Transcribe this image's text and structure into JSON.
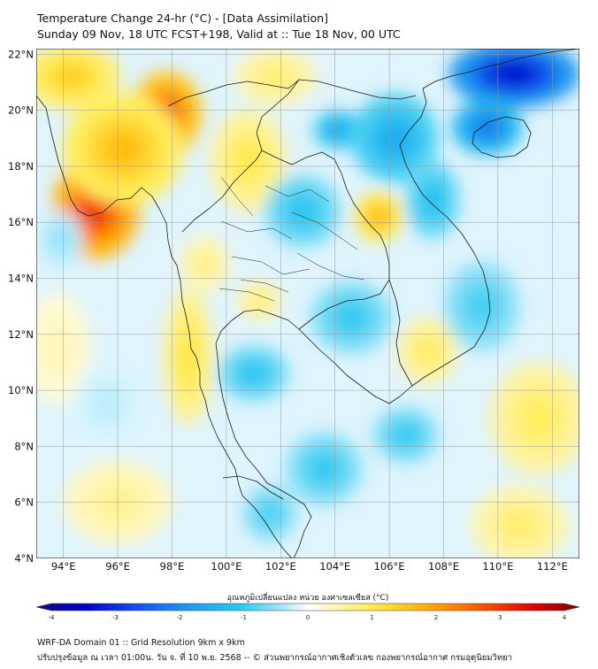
{
  "title": {
    "line1": "Temperature Change 24-hr (°C) - [Data Assimilation]",
    "line2": "Sunday 09 Nov, 18 UTC FCST+198, Valid at :: Tue 18 Nov, 00 UTC"
  },
  "map": {
    "lon_range": [
      93,
      113
    ],
    "lat_range": [
      4,
      22.2
    ],
    "lon_ticks": [
      {
        "value": 94,
        "label": "94°E"
      },
      {
        "value": 96,
        "label": "96°E"
      },
      {
        "value": 98,
        "label": "98°E"
      },
      {
        "value": 100,
        "label": "100°E"
      },
      {
        "value": 102,
        "label": "102°E"
      },
      {
        "value": 104,
        "label": "104°E"
      },
      {
        "value": 106,
        "label": "106°E"
      },
      {
        "value": 108,
        "label": "108°E"
      },
      {
        "value": 110,
        "label": "110°E"
      },
      {
        "value": 112,
        "label": "112°E"
      }
    ],
    "lat_ticks": [
      {
        "value": 4,
        "label": "4°N"
      },
      {
        "value": 6,
        "label": "6°N"
      },
      {
        "value": 8,
        "label": "8°N"
      },
      {
        "value": 10,
        "label": "10°N"
      },
      {
        "value": 12,
        "label": "12°N"
      },
      {
        "value": 14,
        "label": "14°N"
      },
      {
        "value": 16,
        "label": "16°N"
      },
      {
        "value": 18,
        "label": "18°N"
      },
      {
        "value": 20,
        "label": "20°N"
      },
      {
        "value": 22,
        "label": "22°N"
      }
    ],
    "field_blobs": [
      {
        "lon": 95.2,
        "lat": 16.5,
        "value": 3.0,
        "rx": 1.6,
        "ry": 1.8
      },
      {
        "lon": 97.8,
        "lat": 19.9,
        "value": 2.6,
        "rx": 1.3,
        "ry": 1.5
      },
      {
        "lon": 96.2,
        "lat": 18.6,
        "value": 1.6,
        "rx": 2.2,
        "ry": 2.0
      },
      {
        "lon": 94.3,
        "lat": 21.2,
        "value": 1.4,
        "rx": 1.8,
        "ry": 1.2
      },
      {
        "lon": 105.6,
        "lat": 16.2,
        "value": 1.7,
        "rx": 0.9,
        "ry": 0.9
      },
      {
        "lon": 98.6,
        "lat": 11.2,
        "value": 1.1,
        "rx": 0.9,
        "ry": 2.4
      },
      {
        "lon": 100.8,
        "lat": 18.2,
        "value": 1.0,
        "rx": 1.4,
        "ry": 1.8
      },
      {
        "lon": 101.8,
        "lat": 21.2,
        "value": 0.8,
        "rx": 1.5,
        "ry": 1.0
      },
      {
        "lon": 107.4,
        "lat": 11.4,
        "value": 0.9,
        "rx": 1.1,
        "ry": 1.2
      },
      {
        "lon": 111.5,
        "lat": 9.0,
        "value": 0.9,
        "rx": 1.8,
        "ry": 2.0
      },
      {
        "lon": 110.8,
        "lat": 5.2,
        "value": 0.8,
        "rx": 1.8,
        "ry": 1.4
      },
      {
        "lon": 96.0,
        "lat": 6.0,
        "value": 0.6,
        "rx": 2.0,
        "ry": 1.5
      },
      {
        "lon": 93.8,
        "lat": 11.5,
        "value": 0.4,
        "rx": 1.2,
        "ry": 2.0
      },
      {
        "lon": 99.2,
        "lat": 14.5,
        "value": 0.7,
        "rx": 0.9,
        "ry": 1.0
      },
      {
        "lon": 101.2,
        "lat": 13.2,
        "value": 0.8,
        "rx": 0.8,
        "ry": 0.7
      },
      {
        "lon": 110.6,
        "lat": 21.3,
        "value": -3.3,
        "rx": 2.4,
        "ry": 1.2
      },
      {
        "lon": 109.6,
        "lat": 19.4,
        "value": -2.2,
        "rx": 1.3,
        "ry": 1.0
      },
      {
        "lon": 104.1,
        "lat": 19.3,
        "value": -1.6,
        "rx": 0.9,
        "ry": 0.7
      },
      {
        "lon": 106.2,
        "lat": 19.0,
        "value": -1.5,
        "rx": 1.6,
        "ry": 1.6
      },
      {
        "lon": 102.8,
        "lat": 16.4,
        "value": -1.1,
        "rx": 1.4,
        "ry": 1.3
      },
      {
        "lon": 101.0,
        "lat": 10.6,
        "value": -1.1,
        "rx": 1.3,
        "ry": 1.0
      },
      {
        "lon": 104.6,
        "lat": 12.6,
        "value": -1.0,
        "rx": 1.5,
        "ry": 1.3
      },
      {
        "lon": 107.6,
        "lat": 16.8,
        "value": -1.2,
        "rx": 1.0,
        "ry": 1.4
      },
      {
        "lon": 103.6,
        "lat": 7.2,
        "value": -1.0,
        "rx": 1.4,
        "ry": 1.3
      },
      {
        "lon": 101.6,
        "lat": 5.6,
        "value": -0.9,
        "rx": 1.0,
        "ry": 1.0
      },
      {
        "lon": 106.6,
        "lat": 8.4,
        "value": -1.0,
        "rx": 1.2,
        "ry": 1.0
      },
      {
        "lon": 109.4,
        "lat": 13.0,
        "value": -0.9,
        "rx": 1.4,
        "ry": 1.6
      },
      {
        "lon": 93.9,
        "lat": 15.4,
        "value": -0.5,
        "rx": 0.8,
        "ry": 1.0
      },
      {
        "lon": 95.6,
        "lat": 9.5,
        "value": -0.3,
        "rx": 1.3,
        "ry": 1.4
      }
    ]
  },
  "colorbar": {
    "label": "อุณหภูมิเปลี่ยนแปลง หน่วย องศาเซลเซียส (°C)",
    "min": -4,
    "max": 4,
    "ticks": [
      {
        "value": -4,
        "label": "-4"
      },
      {
        "value": -3,
        "label": "-3"
      },
      {
        "value": -2,
        "label": "-2"
      },
      {
        "value": -1,
        "label": "-1"
      },
      {
        "value": 0,
        "label": "0"
      },
      {
        "value": 1,
        "label": "1"
      },
      {
        "value": 2,
        "label": "2"
      },
      {
        "value": 3,
        "label": "3"
      },
      {
        "value": 4,
        "label": "4"
      }
    ],
    "stops": [
      {
        "value": -4,
        "color": "#140a80"
      },
      {
        "value": -3.3,
        "color": "#0000c8"
      },
      {
        "value": -2.5,
        "color": "#1450f0"
      },
      {
        "value": -1.8,
        "color": "#1e96f0"
      },
      {
        "value": -1.0,
        "color": "#28c8f0"
      },
      {
        "value": -0.4,
        "color": "#a0e6fa"
      },
      {
        "value": 0,
        "color": "#ffffff"
      },
      {
        "value": 0.4,
        "color": "#fff5b4"
      },
      {
        "value": 1.0,
        "color": "#ffeb46"
      },
      {
        "value": 1.8,
        "color": "#ffaa00"
      },
      {
        "value": 2.5,
        "color": "#ff5a00"
      },
      {
        "value": 3.3,
        "color": "#e60000"
      },
      {
        "value": 4,
        "color": "#780000"
      }
    ]
  },
  "footer": {
    "line1": "WRF-DA Domain 01 :: Grid Resolution 9km x 9km",
    "line2": "ปรับปรุงข้อมูล ณ เวลา 01:00น. วัน จ. ที่ 10 พ.ย. 2568 -- © ส่วนพยากรณ์อากาศเชิงตัวเลข กองพยากรณ์อากาศ กรมอุตุนิยมวิทยา"
  }
}
